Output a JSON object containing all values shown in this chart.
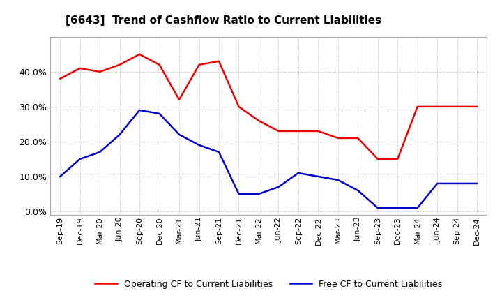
{
  "title": "[6643]  Trend of Cashflow Ratio to Current Liabilities",
  "x_labels": [
    "Sep-19",
    "Dec-19",
    "Mar-20",
    "Jun-20",
    "Sep-20",
    "Dec-20",
    "Mar-21",
    "Jun-21",
    "Sep-21",
    "Dec-21",
    "Mar-22",
    "Jun-22",
    "Sep-22",
    "Dec-22",
    "Mar-23",
    "Jun-23",
    "Sep-23",
    "Dec-23",
    "Mar-24",
    "Jun-24",
    "Sep-24",
    "Dec-24"
  ],
  "operating_cf": [
    0.38,
    0.41,
    0.4,
    0.42,
    0.45,
    0.42,
    0.32,
    0.42,
    0.43,
    0.3,
    0.26,
    0.23,
    0.23,
    0.23,
    0.21,
    0.21,
    0.15,
    0.15,
    0.3,
    0.3,
    0.3,
    0.3
  ],
  "free_cf": [
    0.1,
    0.15,
    0.17,
    0.22,
    0.29,
    0.28,
    0.22,
    0.19,
    0.17,
    0.05,
    0.05,
    0.07,
    0.11,
    0.1,
    0.09,
    0.06,
    0.01,
    0.01,
    0.01,
    0.08,
    0.08,
    0.08
  ],
  "operating_color": "#EE0000",
  "free_color": "#0000CC",
  "ylim": [
    -0.01,
    0.5
  ],
  "yticks": [
    0.0,
    0.1,
    0.2,
    0.3,
    0.4
  ],
  "background_color": "#FFFFFF",
  "grid_color": "#888888",
  "legend_op": "Operating CF to Current Liabilities",
  "legend_free": "Free CF to Current Liabilities",
  "title_fontsize": 11,
  "tick_fontsize": 8
}
